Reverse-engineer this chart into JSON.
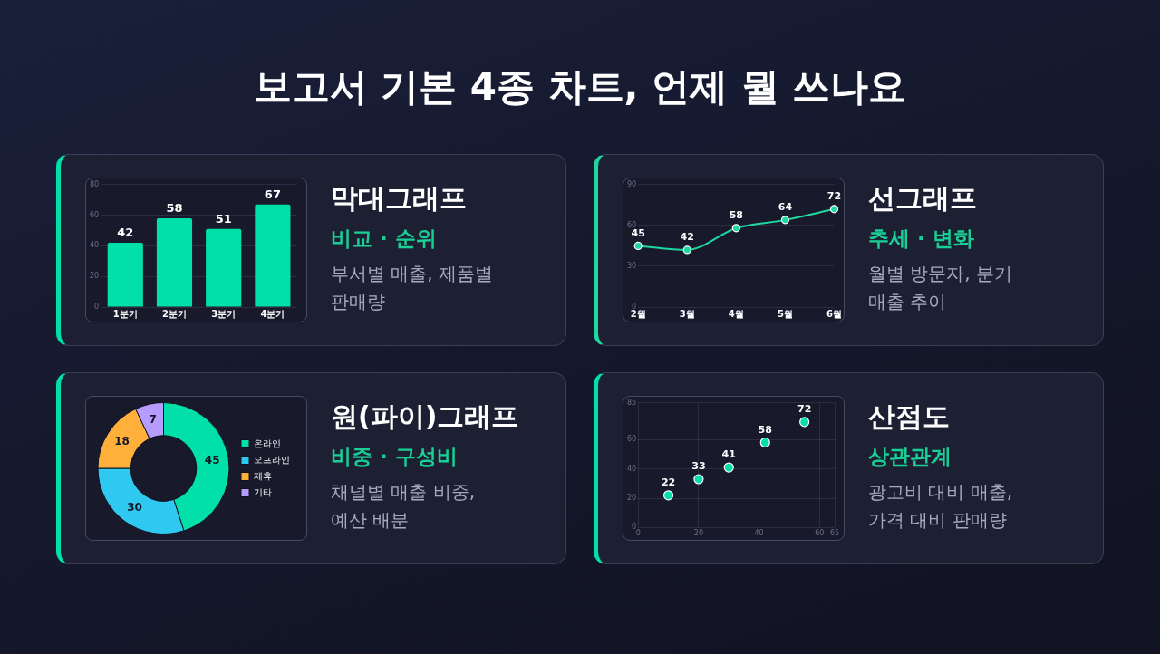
{
  "chart_data": [
    {
      "type": "bar",
      "annotations": [
        "막대그래프",
        "비교 · 순위",
        "부서별 매출, 제품별 판매량"
      ],
      "categories": [
        "1분기",
        "2분기",
        "3분기",
        "4분기"
      ],
      "values": [
        42,
        58,
        51,
        67
      ],
      "color": "#00e0a8",
      "ylim": [
        0,
        80
      ],
      "yticks": [
        0,
        20,
        40,
        60,
        80
      ],
      "grid": "y",
      "data_labels": true
    },
    {
      "type": "line",
      "annotations": [
        "선그래프",
        "추세 · 변화",
        "월별 방문자, 분기 매출 추이"
      ],
      "categories": [
        "2월",
        "3월",
        "4월",
        "5월",
        "6월"
      ],
      "values": [
        45,
        42,
        58,
        64,
        72
      ],
      "color": "#1fd8a0",
      "ylim": [
        0,
        90
      ],
      "yticks": [
        0,
        30,
        60,
        90
      ],
      "grid": "y",
      "marker": "circle",
      "data_labels": true
    },
    {
      "type": "donut",
      "annotations": [
        "원(파이)그래프",
        "비중 · 구성비",
        "채널별 매출 비중, 예산 배분"
      ],
      "categories": [
        "온라인",
        "오프라인",
        "제휴",
        "기타"
      ],
      "values": [
        45,
        30,
        18,
        7
      ],
      "colors": [
        "#00e0a8",
        "#2ec8f0",
        "#ffb03b",
        "#b69cff"
      ],
      "legend": "right",
      "data_labels": true
    },
    {
      "type": "scatter",
      "annotations": [
        "산점도",
        "상관관계",
        "광고비 대비 매출, 가격 대비 판매량"
      ],
      "x": [
        10,
        20,
        30,
        42,
        55
      ],
      "values": [
        22,
        33,
        41,
        58,
        72
      ],
      "color": "#00e0a8",
      "xlim": [
        0,
        65
      ],
      "xticks": [
        0,
        20,
        40,
        60,
        65
      ],
      "ylim": [
        0,
        85
      ],
      "yticks": [
        0,
        20,
        40,
        60,
        85
      ],
      "grid": true,
      "marker": "circle",
      "data_labels": true
    },
    {
      "type": "other",
      "title": "보고서 기본 4종 차트, 언제 뭘 쓰나요"
    }
  ]
}
